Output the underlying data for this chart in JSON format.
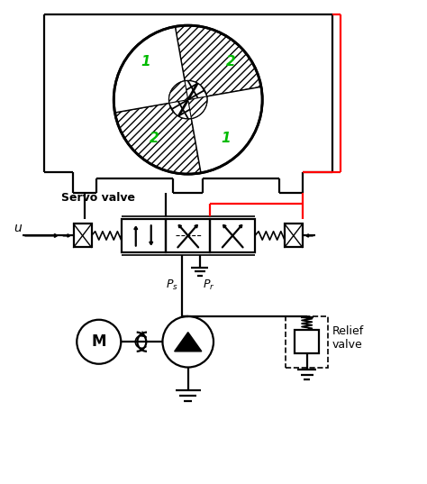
{
  "bg_color": "#ffffff",
  "black": "#000000",
  "red": "#ff0000",
  "green": "#00bb00",
  "fig_width": 4.74,
  "fig_height": 5.37,
  "dpi": 100,
  "xlim": [
    0,
    10
  ],
  "ylim": [
    0,
    11.3
  ]
}
